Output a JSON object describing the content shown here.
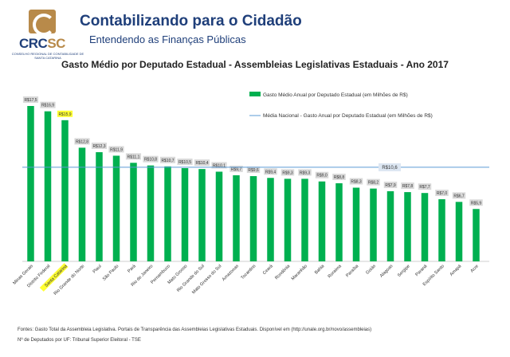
{
  "header": {
    "logo_crc": "CRC",
    "logo_sc": "SC",
    "logo_subtitle": "Conselho Regional de Contabilidade de Santa Catarina",
    "title": "Contabilizando para o Cidadão",
    "subtitle": "Entendendo as Finanças Públicas"
  },
  "colors": {
    "bar": "#00b050",
    "average_line": "#5b9bd5",
    "highlight": "#ffff33",
    "label_bg": "#d9d9d9",
    "title": "#1f3f7a"
  },
  "chart_data": {
    "type": "bar",
    "title": "Gasto Médio por Deputado Estadual - Assembleias Legislativas Estaduais - Ano 2017",
    "categories": [
      "Minas Gerais",
      "Distrito Federal",
      "Santa Catarina",
      "Rio Grande do Norte",
      "Piauí",
      "São Paulo",
      "Pará",
      "Rio de Janeiro",
      "Pernambuco",
      "Mato Grosso",
      "Rio Grande do Sul",
      "Mato Grosso do Sul",
      "Amazonas",
      "Tocantins",
      "Ceará",
      "Rondônia",
      "Maranhão",
      "Bahia",
      "Roraima",
      "Paraíba",
      "Goiás",
      "Alagoas",
      "Sergipe",
      "Paraná",
      "Espírito Santo",
      "Amapá",
      "Acre"
    ],
    "series": [
      {
        "name": "Gasto Médio Anual por Deputado Estadual (em Milhões de R$)",
        "values": [
          17.5,
          16.9,
          15.9,
          12.8,
          12.3,
          11.9,
          11.1,
          10.8,
          10.7,
          10.5,
          10.4,
          10.1,
          9.7,
          9.6,
          9.4,
          9.3,
          9.3,
          9.0,
          8.8,
          8.3,
          8.2,
          7.9,
          7.8,
          7.7,
          7.0,
          6.7,
          5.9
        ]
      }
    ],
    "data_labels": [
      "R$17,5",
      "R$16,9",
      "R$15,9",
      "R$12,8",
      "R$12,3",
      "R$11,9",
      "R$11,1",
      "R$10,8",
      "R$10,7",
      "R$10,5",
      "R$10,4",
      "R$10,1",
      "R$9,7",
      "R$9,6",
      "R$9,4",
      "R$9,3",
      "R$9,3",
      "R$9,0",
      "R$8,8",
      "R$8,3",
      "R$8,2",
      "R$7,9",
      "R$7,8",
      "R$7,7",
      "R$7,0",
      "R$6,7",
      "R$5,9"
    ],
    "highlight_category": "Santa Catarina",
    "average": {
      "name": "Média Nacional - Gasto Anual por Deputado Estadual (em Milhões de R$)",
      "value": 10.6,
      "label": "R$10,6"
    },
    "ylim": [
      0,
      18
    ],
    "grid": false,
    "legend_position": "top-right"
  },
  "footer": {
    "sources": "Fontes: Gasto Total da Assembleia Legislativa. Portais de Transparência das Assembleias Legislativas Estaduais. Disponível em (http://unale.org.br/novo/assembleias)",
    "deputies": "Nº de Deputados por UF: Tribunal Superior Eleitoral - TSE"
  }
}
